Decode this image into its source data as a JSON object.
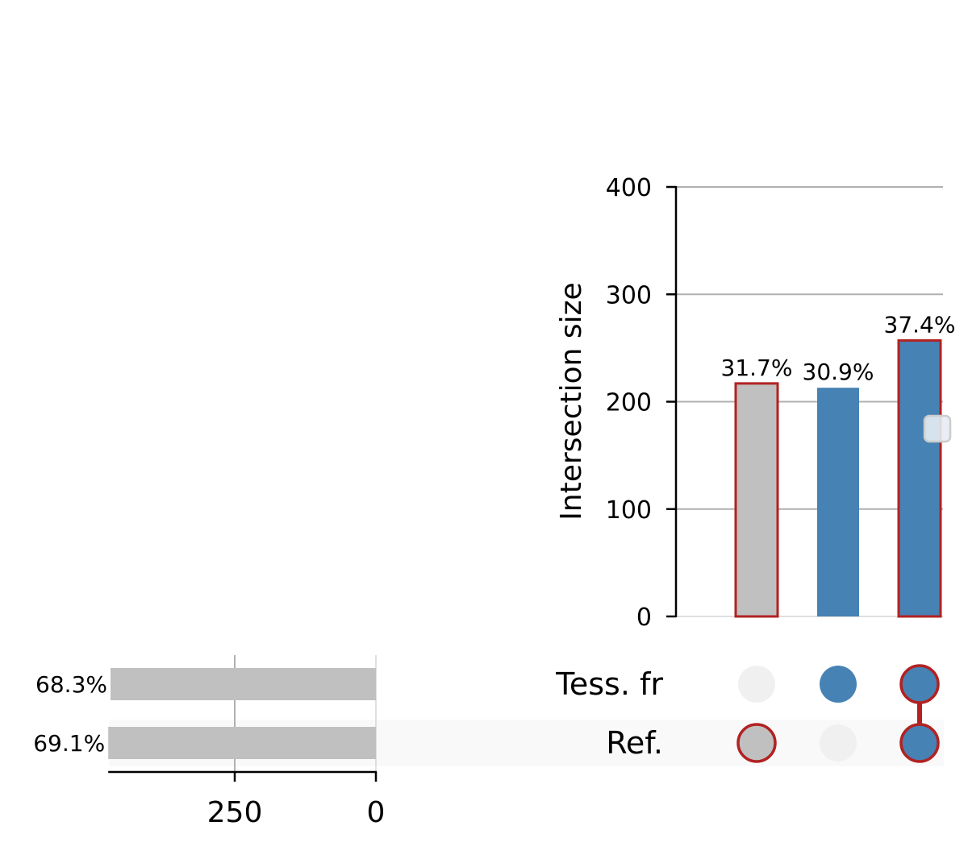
{
  "chart_data": {
    "type": "upset",
    "intersections": {
      "ylabel": "Intersection size",
      "ylim": [
        0,
        400
      ],
      "yticks": [
        0,
        100,
        200,
        300,
        400
      ],
      "grid": true,
      "bars": [
        {
          "members": [
            "Ref."
          ],
          "value": 217,
          "label": "31.7%",
          "color": "#c0c0c0",
          "highlight": true
        },
        {
          "members": [
            "Tess. fr"
          ],
          "value": 213,
          "label": "30.9%",
          "color": "#4682b4",
          "highlight": false
        },
        {
          "members": [
            "Tess. fr",
            "Ref."
          ],
          "value": 257,
          "label": "37.4%",
          "color": "#4682b4",
          "highlight": true
        }
      ]
    },
    "sets": [
      {
        "name": "Tess. fr",
        "size": 470,
        "label": "68.3%"
      },
      {
        "name": "Ref.",
        "size": 474,
        "label": "69.1%"
      }
    ],
    "totals": {
      "xticks": [
        250,
        0
      ],
      "axis_max": 474
    },
    "colors": {
      "highlight_edge": "#b22222",
      "set_bar": "#c0c0c0",
      "blue": "#4682b4",
      "inactive_dot": "#f0f0f0",
      "grid": "#b0b0b0"
    }
  }
}
